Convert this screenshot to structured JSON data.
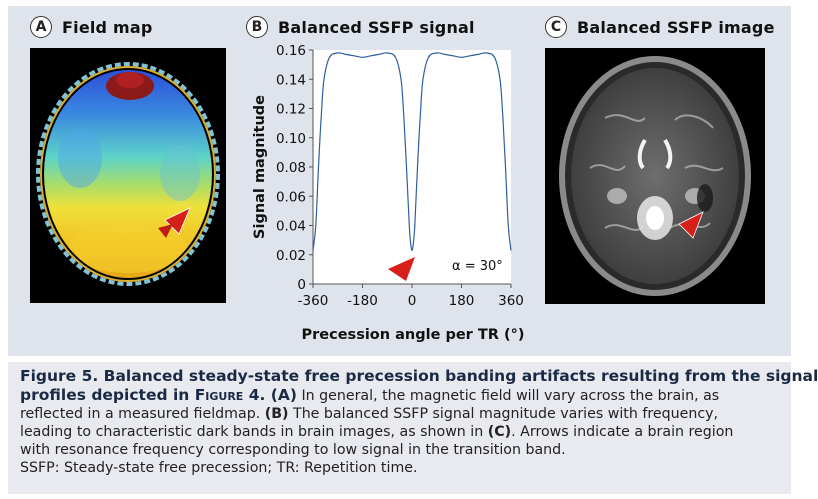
{
  "panels": {
    "a": {
      "letter": "A",
      "title": "Field map"
    },
    "b": {
      "letter": "B",
      "title": "Balanced SSFP signal"
    },
    "c": {
      "letter": "C",
      "title": "Balanced SSFP image"
    }
  },
  "chart_data": {
    "type": "line",
    "title": "",
    "xlabel": "Precession angle per TR (°)",
    "ylabel": "Signal magnitude",
    "xlim": [
      -360,
      360
    ],
    "ylim": [
      0,
      0.16
    ],
    "xticks": [
      -360,
      -180,
      0,
      180,
      360
    ],
    "xtick_labels": [
      "-360",
      "-180",
      "0",
      "180",
      "360"
    ],
    "yticks": [
      0,
      0.02,
      0.04,
      0.06,
      0.08,
      0.1,
      0.12,
      0.14,
      0.16
    ],
    "ytick_labels": [
      "0",
      "0.02",
      "0.04",
      "0.06",
      "0.08",
      "0.10",
      "0.12",
      "0.14",
      "0.16"
    ],
    "annotation": "α = 30°",
    "grid": false,
    "series": [
      {
        "x": [
          -360,
          -350,
          -340,
          -330,
          -320,
          -300,
          -270,
          -240,
          -210,
          -180,
          -150,
          -120,
          -90,
          -60,
          -40,
          -30,
          -20,
          -10,
          -5,
          0,
          5,
          10,
          20,
          30,
          40,
          60,
          90,
          120,
          150,
          180,
          210,
          240,
          270,
          300,
          320,
          330,
          340,
          350,
          360
        ],
        "y": [
          0.023,
          0.04,
          0.08,
          0.115,
          0.14,
          0.155,
          0.158,
          0.157,
          0.156,
          0.155,
          0.156,
          0.157,
          0.158,
          0.155,
          0.14,
          0.115,
          0.08,
          0.04,
          0.028,
          0.023,
          0.028,
          0.04,
          0.08,
          0.115,
          0.14,
          0.155,
          0.158,
          0.157,
          0.156,
          0.155,
          0.156,
          0.157,
          0.158,
          0.155,
          0.14,
          0.115,
          0.08,
          0.04,
          0.023
        ]
      }
    ]
  },
  "caption": {
    "title_line1": "Figure 5. Balanced steady-state free precession banding artifacts resulting from the signal",
    "title_line2_start": "profiles depicted in ",
    "title_figref": "Figure 4",
    "title_line2_end": ". (A)",
    "line2_rest": " In general, the magnetic field will vary across the brain, as",
    "line3_start": "reflected in a measured fieldmap. ",
    "line3_label": "(B)",
    "line3_end": " The balanced SSFP signal magnitude varies with frequency,",
    "line4_start": "leading to characteristic dark bands in brain images, as shown in ",
    "line4_label": "(C)",
    "line4_end": ". Arrows indicate a brain region",
    "line5": "with resonance frequency corresponding to low signal in the transition band.",
    "line6": "SSFP: Steady-state free precession; TR: Repetition time."
  }
}
